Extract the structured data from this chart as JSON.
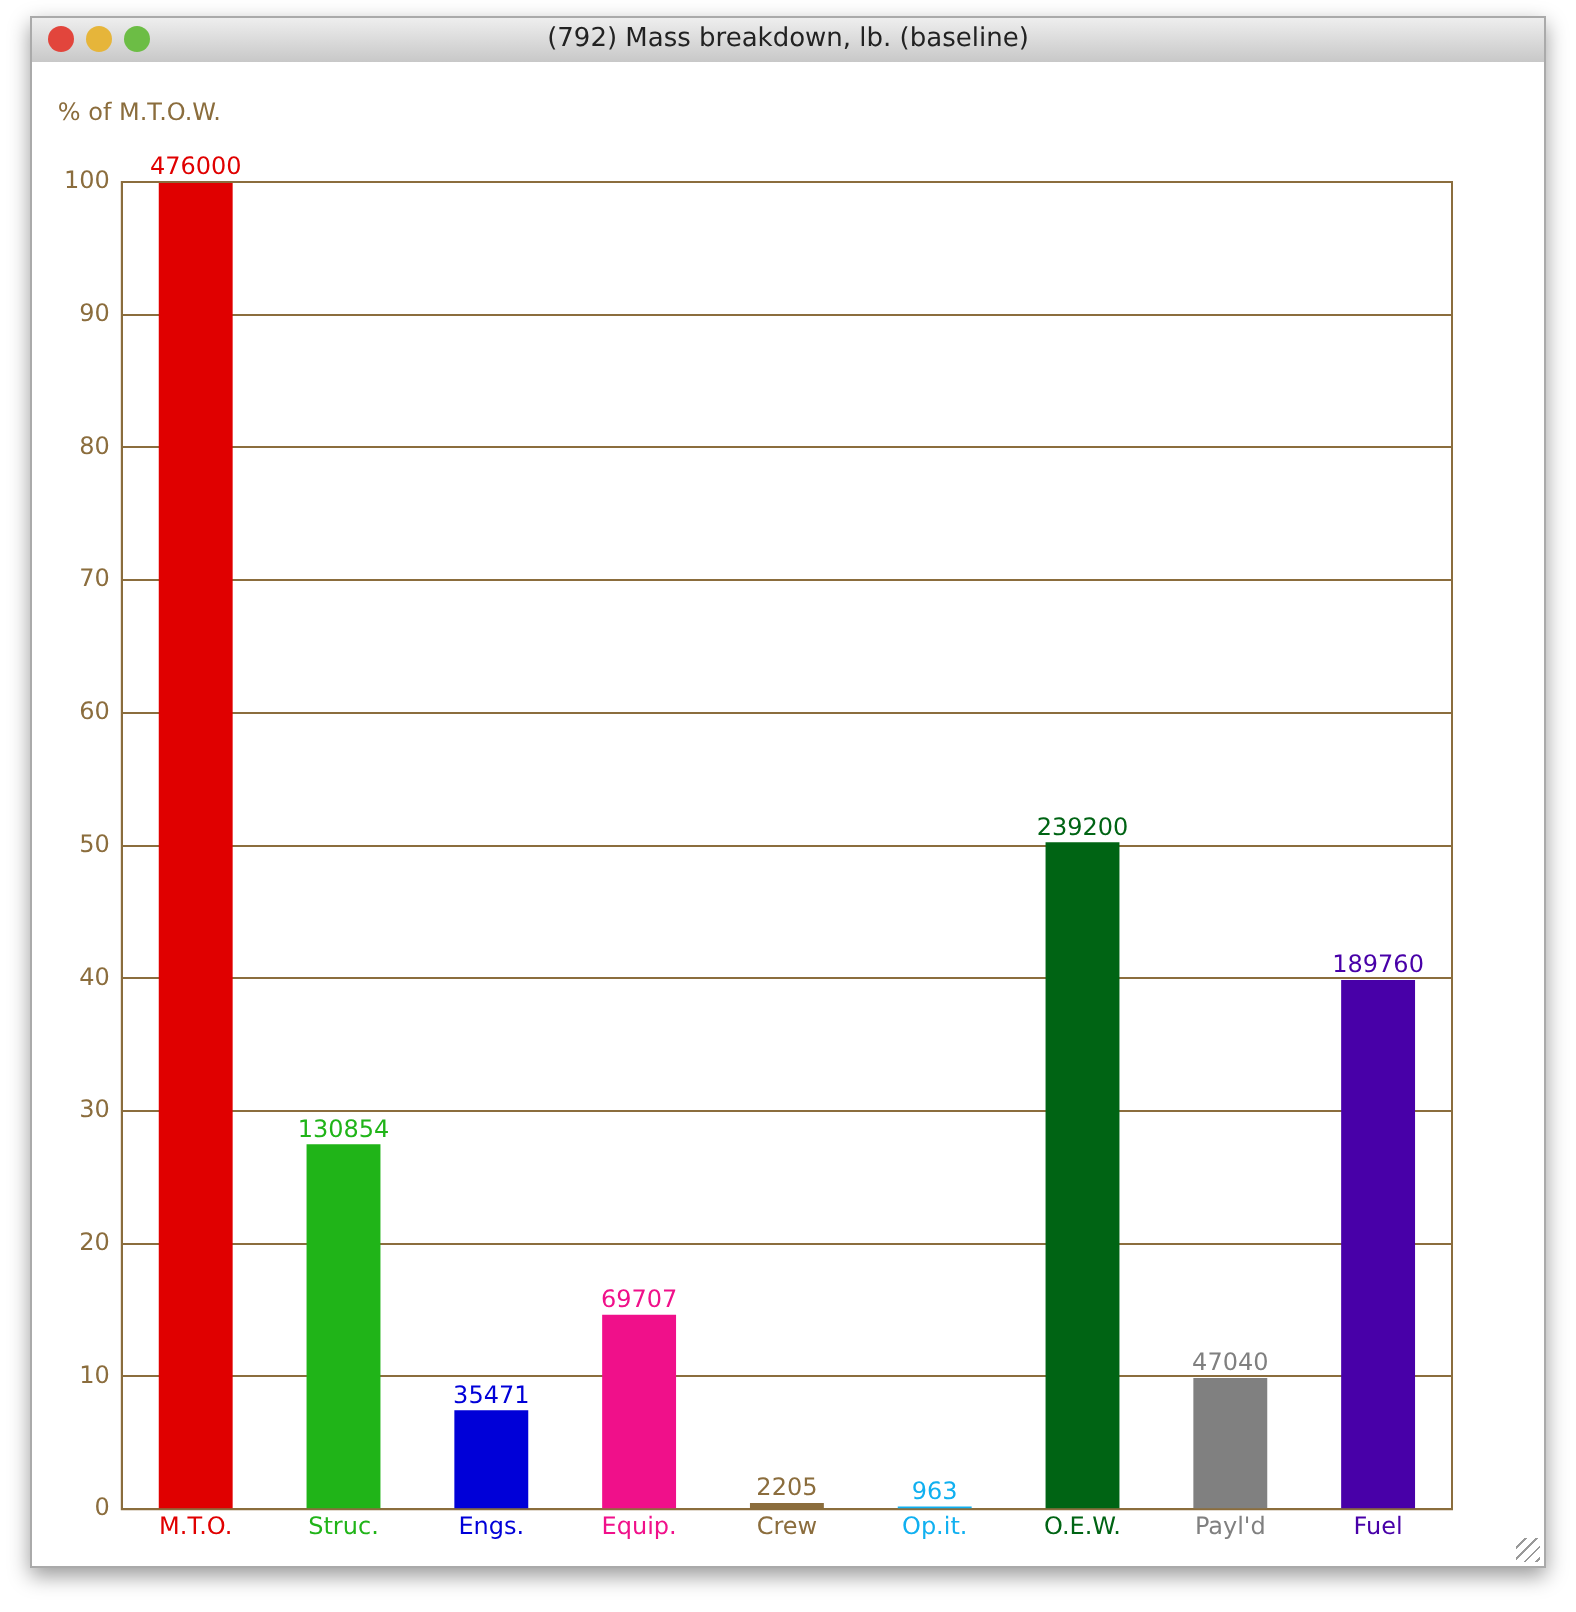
{
  "chart_data": {
    "type": "bar",
    "title": "(792)  Mass breakdown, lb. (baseline)",
    "ylabel": "% of M.T.O.W.",
    "categories": [
      "M.T.O.",
      "Struc.",
      "Engs.",
      "Equip.",
      "Crew",
      "Op.it.",
      "O.E.W.",
      "Payl'd",
      "Fuel"
    ],
    "series": [
      {
        "axis": "y2",
        "values": [
          476000,
          130854,
          35471,
          69707,
          2205,
          963,
          239200,
          47040,
          189760
        ],
        "colors": [
          "#e00000",
          "#20b418",
          "#0000d8",
          "#f0108a",
          "#8b6d3d",
          "#10b0f0",
          "#006414",
          "#808080",
          "#4800a8"
        ]
      }
    ],
    "data_labels": true,
    "ylim": [
      0,
      100
    ],
    "yticks": [
      0,
      10,
      20,
      30,
      40,
      50,
      60,
      70,
      80,
      90,
      100
    ],
    "y2lim": [
      0,
      476000
    ],
    "grid": "y",
    "legend": false
  }
}
